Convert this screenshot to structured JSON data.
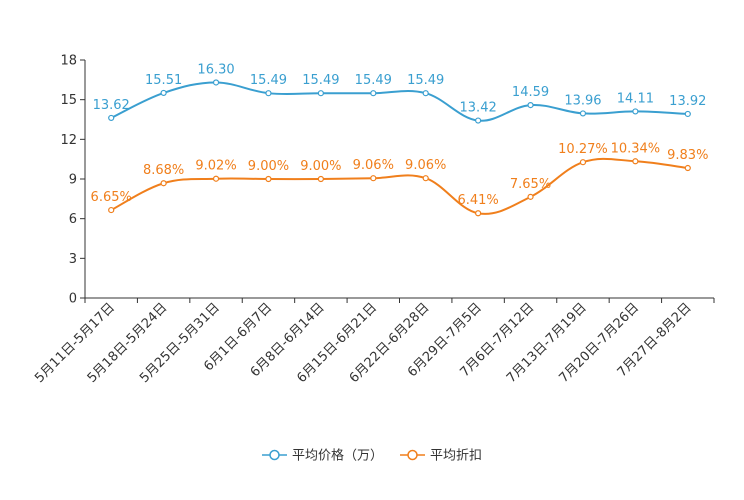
{
  "chart_data": {
    "type": "line",
    "title": "",
    "xlabel": "",
    "ylabel": "",
    "ylim": [
      0,
      18
    ],
    "yticks": [
      0,
      3,
      6,
      9,
      12,
      15,
      18
    ],
    "grid": false,
    "legend_position": "bottom-center",
    "categories": [
      "5月11日-5月17日",
      "5月18日-5月24日",
      "5月25日-5月31日",
      "6月1日-6月7日",
      "6月8日-6月14日",
      "6月15日-6月21日",
      "6月22日-6月28日",
      "6月29日-7月5日",
      "7月6日-7月12日",
      "7月13日-7月19日",
      "7月20日-7月26日",
      "7月27日-8月2日"
    ],
    "series": [
      {
        "name": "平均价格（万）",
        "color": "#3a9fd0",
        "values": [
          13.62,
          15.51,
          16.3,
          15.49,
          15.49,
          15.49,
          15.49,
          13.42,
          14.59,
          13.96,
          14.11,
          13.92
        ],
        "labels": [
          "13.62",
          "15.51",
          "16.30",
          "15.49",
          "15.49",
          "15.49",
          "15.49",
          "13.42",
          "14.59",
          "13.96",
          "14.11",
          "13.92"
        ]
      },
      {
        "name": "平均折扣",
        "color": "#f07f1c",
        "values": [
          6.65,
          8.68,
          9.02,
          9.0,
          9.0,
          9.06,
          9.06,
          6.41,
          7.65,
          10.27,
          10.34,
          9.83
        ],
        "labels": [
          "6.65%",
          "8.68%",
          "9.02%",
          "9.00%",
          "9.00%",
          "9.06%",
          "9.06%",
          "6.41%",
          "7.65%",
          "10.27%",
          "10.34%",
          "9.83%"
        ]
      }
    ]
  }
}
